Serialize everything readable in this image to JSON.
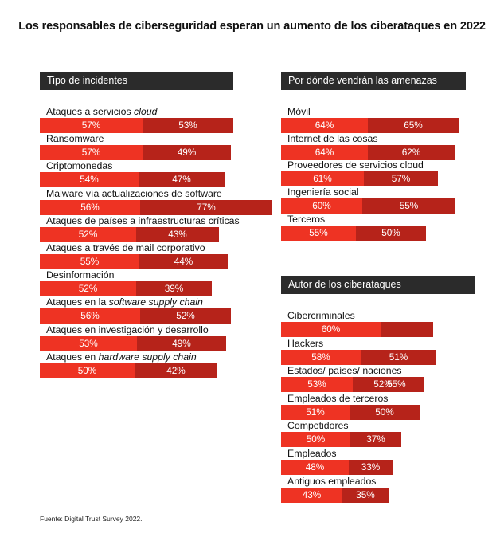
{
  "title": "Los responsables de ciberseguridad esperan un aumento de los ciberataques en 2022",
  "source": "Fuente: Digital Trust Survey 2022.",
  "colors": {
    "series_a": "#ee3323",
    "series_b": "#b6231a",
    "header_bg": "#2b2b2b"
  },
  "chart_data": [
    {
      "type": "bar",
      "title": "Tipo de incidentes",
      "categories": [
        [
          "Ataques a servicios ",
          {
            "i": "cloud"
          }
        ],
        [
          "Ransomware"
        ],
        [
          "Criptomonedas"
        ],
        [
          "Malware vía actualizaciones de software"
        ],
        [
          "Ataques de países a infraestructuras críticas"
        ],
        [
          "Ataques a través de mail corporativo"
        ],
        [
          "Desinformación"
        ],
        [
          "Ataques en la ",
          {
            "i": "software supply chain"
          }
        ],
        [
          "Ataques en investigación y desarrollo"
        ],
        [
          "Ataques en ",
          {
            "i": "hardware supply chain"
          }
        ]
      ],
      "series": [
        {
          "values": [
            57,
            57,
            54,
            56,
            52,
            55,
            52,
            56,
            53,
            50
          ]
        },
        {
          "values": [
            53,
            49,
            47,
            77,
            43,
            44,
            39,
            52,
            49,
            42
          ]
        }
      ],
      "value_labels": [
        [
          "57%",
          "53%"
        ],
        [
          "57%",
          "49%"
        ],
        [
          "54%",
          "47%"
        ],
        [
          "56%",
          "77%"
        ],
        [
          "52%",
          "43%"
        ],
        [
          "55%",
          "44%"
        ],
        [
          "52%",
          "39%"
        ],
        [
          "56%",
          "52%"
        ],
        [
          "53%",
          "49%"
        ],
        [
          "50%",
          "42%"
        ]
      ]
    },
    {
      "type": "bar",
      "title": "Por dónde vendrán las amenazas",
      "categories": [
        [
          "Móvil"
        ],
        [
          "Internet de las cosas"
        ],
        [
          "Proveedores de servicios cloud"
        ],
        [
          "Ingeniería social"
        ],
        [
          "Terceros"
        ]
      ],
      "series": [
        {
          "values": [
            64,
            64,
            61,
            60,
            55
          ]
        },
        {
          "values": [
            65,
            62,
            57,
            55,
            50
          ]
        }
      ],
      "value_labels": [
        [
          "64%",
          "65%"
        ],
        [
          "64%",
          "62%"
        ],
        [
          "61%",
          "57%"
        ],
        [
          "60%",
          "55%"
        ],
        [
          "55%",
          "50%"
        ]
      ]
    },
    {
      "type": "bar",
      "title": "Autor de los ciberataques",
      "categories": [
        [
          "Cibercriminales"
        ],
        [
          "Hackers"
        ],
        [
          "Estados/ países/ naciones"
        ],
        [
          "Empleados de terceros"
        ],
        [
          "Competidores"
        ],
        [
          "Empleados"
        ],
        [
          "Antiguos empleados"
        ]
      ],
      "series": [
        {
          "values": [
            60,
            58,
            53,
            51,
            50,
            48,
            43
          ]
        },
        {
          "values": [
            null,
            51,
            52,
            50,
            37,
            33,
            35
          ]
        }
      ],
      "value_labels": [
        [
          "60%",
          ""
        ],
        [
          "58%",
          "51%"
        ],
        [
          "53%",
          "52%"
        ],
        [
          "51%",
          "50%"
        ],
        [
          "50%",
          "37%"
        ],
        [
          "48%",
          "33%"
        ],
        [
          "43%",
          "35%"
        ]
      ],
      "overlap_labels": [
        "",
        "",
        "55%",
        "",
        "",
        "",
        ""
      ]
    }
  ]
}
